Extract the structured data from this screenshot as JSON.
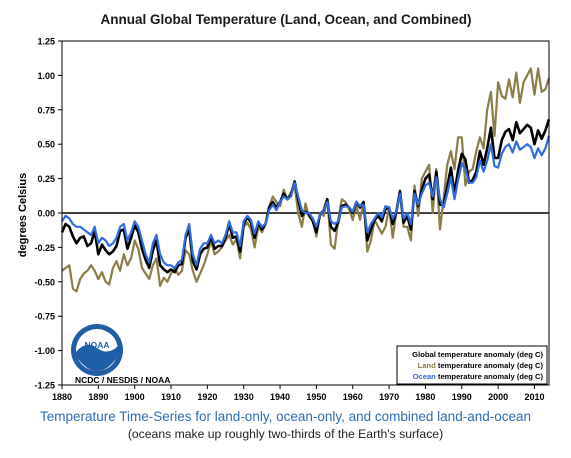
{
  "chart_data": {
    "type": "line",
    "title": "Annual Global Temperature (Land, Ocean, and Combined)",
    "ylabel": "degrees Celsius",
    "xlabel": "",
    "xlim": [
      1880,
      2014
    ],
    "ylim": [
      -1.25,
      1.25
    ],
    "x_ticks": [
      1880,
      1890,
      1900,
      1910,
      1920,
      1930,
      1940,
      1950,
      1960,
      1970,
      1980,
      1990,
      2000,
      2010
    ],
    "y_ticks": [
      -1.25,
      -1.0,
      -0.75,
      -0.5,
      -0.25,
      0.0,
      0.25,
      0.5,
      0.75,
      1.0,
      1.25
    ],
    "x_start": 1880,
    "grid": false,
    "legend_position": "bottom-right",
    "series": [
      {
        "key": "Land",
        "name": "Land",
        "legend_suffix": " temperature anomaly (deg C)",
        "color": "#8b7d45",
        "values": [
          -0.42,
          -0.4,
          -0.38,
          -0.55,
          -0.57,
          -0.48,
          -0.44,
          -0.42,
          -0.38,
          -0.42,
          -0.48,
          -0.43,
          -0.5,
          -0.52,
          -0.4,
          -0.35,
          -0.42,
          -0.3,
          -0.38,
          -0.33,
          -0.2,
          -0.26,
          -0.4,
          -0.44,
          -0.48,
          -0.38,
          -0.33,
          -0.53,
          -0.47,
          -0.5,
          -0.44,
          -0.4,
          -0.45,
          -0.42,
          -0.27,
          -0.3,
          -0.42,
          -0.5,
          -0.44,
          -0.38,
          -0.3,
          -0.2,
          -0.3,
          -0.28,
          -0.25,
          -0.2,
          -0.16,
          -0.23,
          -0.19,
          -0.33,
          -0.1,
          -0.07,
          -0.12,
          -0.25,
          -0.1,
          -0.14,
          -0.08,
          0.05,
          0.12,
          0.08,
          0.05,
          0.17,
          0.1,
          0.15,
          0.2,
          0.0,
          -0.1,
          0.07,
          -0.03,
          -0.05,
          -0.17,
          0.0,
          -0.02,
          0.1,
          -0.23,
          -0.26,
          -0.05,
          0.1,
          0.08,
          0.03,
          -0.05,
          0.05,
          -0.05,
          0.08,
          -0.28,
          -0.2,
          -0.05,
          -0.1,
          -0.15,
          -0.1,
          0.04,
          -0.18,
          0.01,
          0.14,
          -0.1,
          -0.1,
          -0.2,
          0.2,
          -0.02,
          0.25,
          0.3,
          0.35,
          0.0,
          0.32,
          -0.12,
          0.1,
          0.35,
          0.45,
          0.32,
          0.55,
          0.55,
          0.2,
          0.3,
          0.32,
          0.45,
          0.55,
          0.47,
          0.75,
          0.88,
          0.56,
          0.95,
          0.85,
          0.83,
          0.97,
          0.84,
          1.02,
          0.8,
          0.95,
          1.0,
          1.05,
          0.86,
          1.05,
          0.88,
          0.9,
          0.98
        ]
      },
      {
        "key": "Global",
        "name": "Global",
        "legend_suffix": " temperature anomaly (deg C)",
        "color": "#000000",
        "values": [
          -0.14,
          -0.08,
          -0.1,
          -0.17,
          -0.22,
          -0.18,
          -0.17,
          -0.24,
          -0.22,
          -0.13,
          -0.3,
          -0.23,
          -0.27,
          -0.3,
          -0.28,
          -0.24,
          -0.13,
          -0.12,
          -0.26,
          -0.18,
          -0.09,
          -0.14,
          -0.26,
          -0.34,
          -0.4,
          -0.27,
          -0.2,
          -0.38,
          -0.41,
          -0.43,
          -0.41,
          -0.43,
          -0.38,
          -0.37,
          -0.18,
          -0.12,
          -0.35,
          -0.41,
          -0.3,
          -0.26,
          -0.25,
          -0.17,
          -0.26,
          -0.24,
          -0.24,
          -0.18,
          -0.08,
          -0.18,
          -0.17,
          -0.28,
          -0.08,
          -0.03,
          -0.07,
          -0.18,
          -0.07,
          -0.12,
          -0.08,
          0.04,
          0.08,
          0.04,
          0.08,
          0.14,
          0.1,
          0.13,
          0.23,
          0.1,
          -0.02,
          0.01,
          -0.01,
          -0.06,
          -0.14,
          -0.01,
          0.02,
          0.1,
          -0.1,
          -0.13,
          -0.07,
          0.05,
          0.06,
          0.04,
          0.0,
          0.08,
          0.04,
          0.08,
          -0.2,
          -0.12,
          -0.05,
          -0.02,
          -0.06,
          0.03,
          0.04,
          -0.08,
          0.01,
          0.16,
          -0.07,
          -0.02,
          -0.12,
          0.16,
          0.05,
          0.17,
          0.25,
          0.28,
          0.1,
          0.3,
          0.06,
          0.06,
          0.19,
          0.33,
          0.14,
          0.31,
          0.43,
          0.39,
          0.22,
          0.24,
          0.3,
          0.45,
          0.35,
          0.47,
          0.62,
          0.4,
          0.4,
          0.53,
          0.59,
          0.61,
          0.53,
          0.66,
          0.58,
          0.61,
          0.64,
          0.62,
          0.5,
          0.6,
          0.54,
          0.6,
          0.68
        ]
      },
      {
        "key": "Ocean",
        "name": "Ocean",
        "legend_suffix": " temperature anomaly (deg C)",
        "color": "#2f6ce0",
        "values": [
          -0.06,
          -0.02,
          -0.04,
          -0.08,
          -0.1,
          -0.1,
          -0.12,
          -0.14,
          -0.16,
          -0.1,
          -0.22,
          -0.18,
          -0.2,
          -0.24,
          -0.22,
          -0.18,
          -0.1,
          -0.08,
          -0.2,
          -0.14,
          -0.06,
          -0.1,
          -0.2,
          -0.3,
          -0.36,
          -0.22,
          -0.16,
          -0.3,
          -0.36,
          -0.38,
          -0.38,
          -0.4,
          -0.36,
          -0.34,
          -0.16,
          -0.08,
          -0.3,
          -0.38,
          -0.26,
          -0.22,
          -0.22,
          -0.16,
          -0.22,
          -0.2,
          -0.22,
          -0.16,
          -0.06,
          -0.14,
          -0.14,
          -0.24,
          -0.06,
          -0.02,
          -0.05,
          -0.15,
          -0.06,
          -0.1,
          -0.08,
          0.02,
          0.06,
          0.02,
          0.08,
          0.12,
          0.1,
          0.12,
          0.22,
          0.12,
          0.02,
          0.0,
          0.0,
          -0.04,
          -0.1,
          -0.01,
          0.02,
          0.08,
          -0.06,
          -0.08,
          -0.06,
          0.04,
          0.05,
          0.04,
          0.01,
          0.08,
          0.05,
          0.06,
          -0.14,
          -0.08,
          -0.04,
          0.0,
          -0.03,
          0.05,
          0.04,
          -0.04,
          0.01,
          0.14,
          -0.04,
          0.0,
          -0.08,
          0.14,
          0.06,
          0.14,
          0.2,
          0.22,
          0.12,
          0.26,
          0.1,
          0.04,
          0.14,
          0.26,
          0.1,
          0.24,
          0.36,
          0.32,
          0.22,
          0.22,
          0.26,
          0.38,
          0.3,
          0.38,
          0.5,
          0.34,
          0.33,
          0.43,
          0.48,
          0.5,
          0.44,
          0.52,
          0.46,
          0.48,
          0.5,
          0.48,
          0.4,
          0.47,
          0.42,
          0.47,
          0.56
        ]
      }
    ],
    "legend_order": [
      "Global",
      "Land",
      "Ocean"
    ],
    "credit": "NCDC / NESDIS / NOAA",
    "logo_text": "NOAA"
  },
  "caption": {
    "line1": "Temperature Time-Series for land-only, ocean-only, and combined land-and-ocean",
    "line2": "(oceans make up roughly two-thirds of the Earth's surface)"
  },
  "colors": {
    "axis": "#000000",
    "legend_text": "#000000",
    "land_legend": "#8b7d45",
    "ocean_legend": "#2f6ce0"
  }
}
